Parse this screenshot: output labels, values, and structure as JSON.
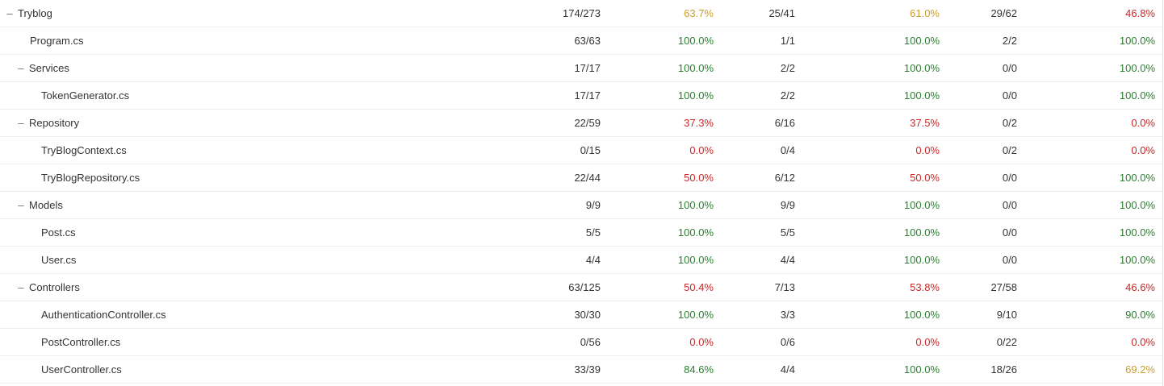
{
  "rows": [
    {
      "name": "Tryblog",
      "toggle": "–",
      "lines": "174/273",
      "lines_pct": "63.7%",
      "lines_pct_status": "yellow",
      "branches": "25/41",
      "branches_pct": "61.0%",
      "branches_pct_status": "yellow",
      "methods": "29/62",
      "methods_pct": "46.8%",
      "methods_pct_status": "red"
    },
    {
      "name": "Program.cs",
      "toggle": "",
      "lines": "63/63",
      "lines_pct": "100.0%",
      "lines_pct_status": "green",
      "branches": "1/1",
      "branches_pct": "100.0%",
      "branches_pct_status": "green",
      "methods": "2/2",
      "methods_pct": "100.0%",
      "methods_pct_status": "green"
    },
    {
      "name": "Services",
      "toggle": "–",
      "lines": "17/17",
      "lines_pct": "100.0%",
      "lines_pct_status": "green",
      "branches": "2/2",
      "branches_pct": "100.0%",
      "branches_pct_status": "green",
      "methods": "0/0",
      "methods_pct": "100.0%",
      "methods_pct_status": "green"
    },
    {
      "name": "TokenGenerator.cs",
      "toggle": "",
      "lines": "17/17",
      "lines_pct": "100.0%",
      "lines_pct_status": "green",
      "branches": "2/2",
      "branches_pct": "100.0%",
      "branches_pct_status": "green",
      "methods": "0/0",
      "methods_pct": "100.0%",
      "methods_pct_status": "green"
    },
    {
      "name": "Repository",
      "toggle": "–",
      "lines": "22/59",
      "lines_pct": "37.3%",
      "lines_pct_status": "red",
      "branches": "6/16",
      "branches_pct": "37.5%",
      "branches_pct_status": "red",
      "methods": "0/2",
      "methods_pct": "0.0%",
      "methods_pct_status": "red"
    },
    {
      "name": "TryBlogContext.cs",
      "toggle": "",
      "lines": "0/15",
      "lines_pct": "0.0%",
      "lines_pct_status": "red",
      "branches": "0/4",
      "branches_pct": "0.0%",
      "branches_pct_status": "red",
      "methods": "0/2",
      "methods_pct": "0.0%",
      "methods_pct_status": "red"
    },
    {
      "name": "TryBlogRepository.cs",
      "toggle": "",
      "lines": "22/44",
      "lines_pct": "50.0%",
      "lines_pct_status": "red",
      "branches": "6/12",
      "branches_pct": "50.0%",
      "branches_pct_status": "red",
      "methods": "0/0",
      "methods_pct": "100.0%",
      "methods_pct_status": "green"
    },
    {
      "name": "Models",
      "toggle": "–",
      "lines": "9/9",
      "lines_pct": "100.0%",
      "lines_pct_status": "green",
      "branches": "9/9",
      "branches_pct": "100.0%",
      "branches_pct_status": "green",
      "methods": "0/0",
      "methods_pct": "100.0%",
      "methods_pct_status": "green"
    },
    {
      "name": "Post.cs",
      "toggle": "",
      "lines": "5/5",
      "lines_pct": "100.0%",
      "lines_pct_status": "green",
      "branches": "5/5",
      "branches_pct": "100.0%",
      "branches_pct_status": "green",
      "methods": "0/0",
      "methods_pct": "100.0%",
      "methods_pct_status": "green"
    },
    {
      "name": "User.cs",
      "toggle": "",
      "lines": "4/4",
      "lines_pct": "100.0%",
      "lines_pct_status": "green",
      "branches": "4/4",
      "branches_pct": "100.0%",
      "branches_pct_status": "green",
      "methods": "0/0",
      "methods_pct": "100.0%",
      "methods_pct_status": "green"
    },
    {
      "name": "Controllers",
      "toggle": "–",
      "lines": "63/125",
      "lines_pct": "50.4%",
      "lines_pct_status": "red",
      "branches": "7/13",
      "branches_pct": "53.8%",
      "branches_pct_status": "red",
      "methods": "27/58",
      "methods_pct": "46.6%",
      "methods_pct_status": "red"
    },
    {
      "name": "AuthenticationController.cs",
      "toggle": "",
      "lines": "30/30",
      "lines_pct": "100.0%",
      "lines_pct_status": "green",
      "branches": "3/3",
      "branches_pct": "100.0%",
      "branches_pct_status": "green",
      "methods": "9/10",
      "methods_pct": "90.0%",
      "methods_pct_status": "green"
    },
    {
      "name": "PostController.cs",
      "toggle": "",
      "lines": "0/56",
      "lines_pct": "0.0%",
      "lines_pct_status": "red",
      "branches": "0/6",
      "branches_pct": "0.0%",
      "branches_pct_status": "red",
      "methods": "0/22",
      "methods_pct": "0.0%",
      "methods_pct_status": "red"
    },
    {
      "name": "UserController.cs",
      "toggle": "",
      "lines": "33/39",
      "lines_pct": "84.6%",
      "lines_pct_status": "green",
      "branches": "4/4",
      "branches_pct": "100.0%",
      "branches_pct_status": "green",
      "methods": "18/26",
      "methods_pct": "69.2%",
      "methods_pct_status": "yellow"
    }
  ],
  "colors": {
    "green": "#2e7d32",
    "red": "#c62828",
    "yellow": "#c8a030"
  }
}
